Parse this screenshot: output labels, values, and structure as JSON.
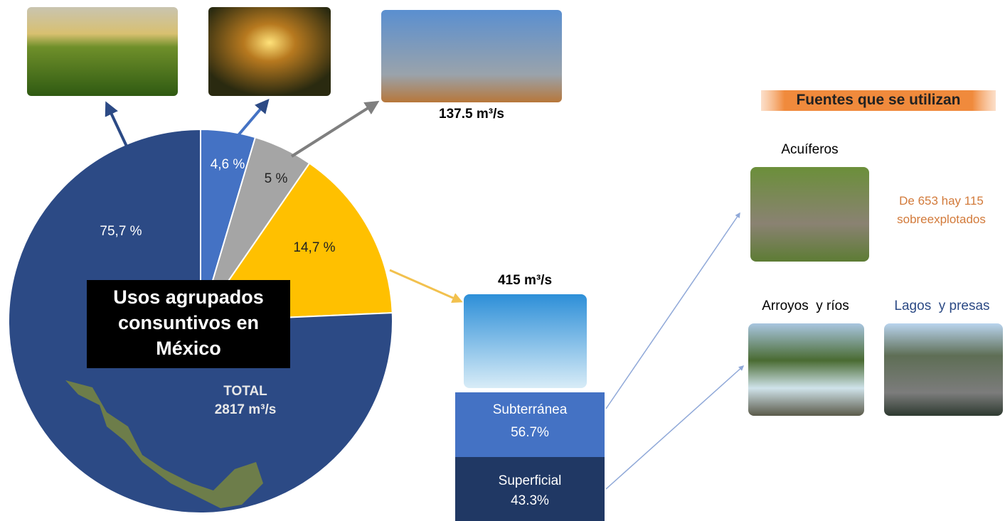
{
  "chart_data": {
    "type": "pie",
    "values": [
      4.6,
      5,
      14.7,
      75.7
    ],
    "value_labels": [
      "4,6 %",
      "5 %",
      "14,7 %",
      "75,7 %"
    ],
    "colors": [
      "#4472c4",
      "#a5a5a5",
      "#ffc000",
      "#2c4a85"
    ]
  },
  "center_box": "Usos agrupados consuntivos en México",
  "total": {
    "label": "TOTAL",
    "value": "2817 m³/s"
  },
  "industry_flow": "137.5 m³/s",
  "public_flow": "415 m³/s",
  "sources_split": [
    {
      "label": "Subterránea",
      "value": "56.7%"
    },
    {
      "label": "Superficial",
      "value": "43.3%"
    }
  ],
  "sources_title": "Fuentes que se utilizan",
  "sources": [
    {
      "label": "Acuíferos",
      "note": "De 653 hay 115 sobreexplotados"
    },
    {
      "label": "Arroyos  y ríos"
    },
    {
      "label": "Lagos  y presas"
    }
  ]
}
